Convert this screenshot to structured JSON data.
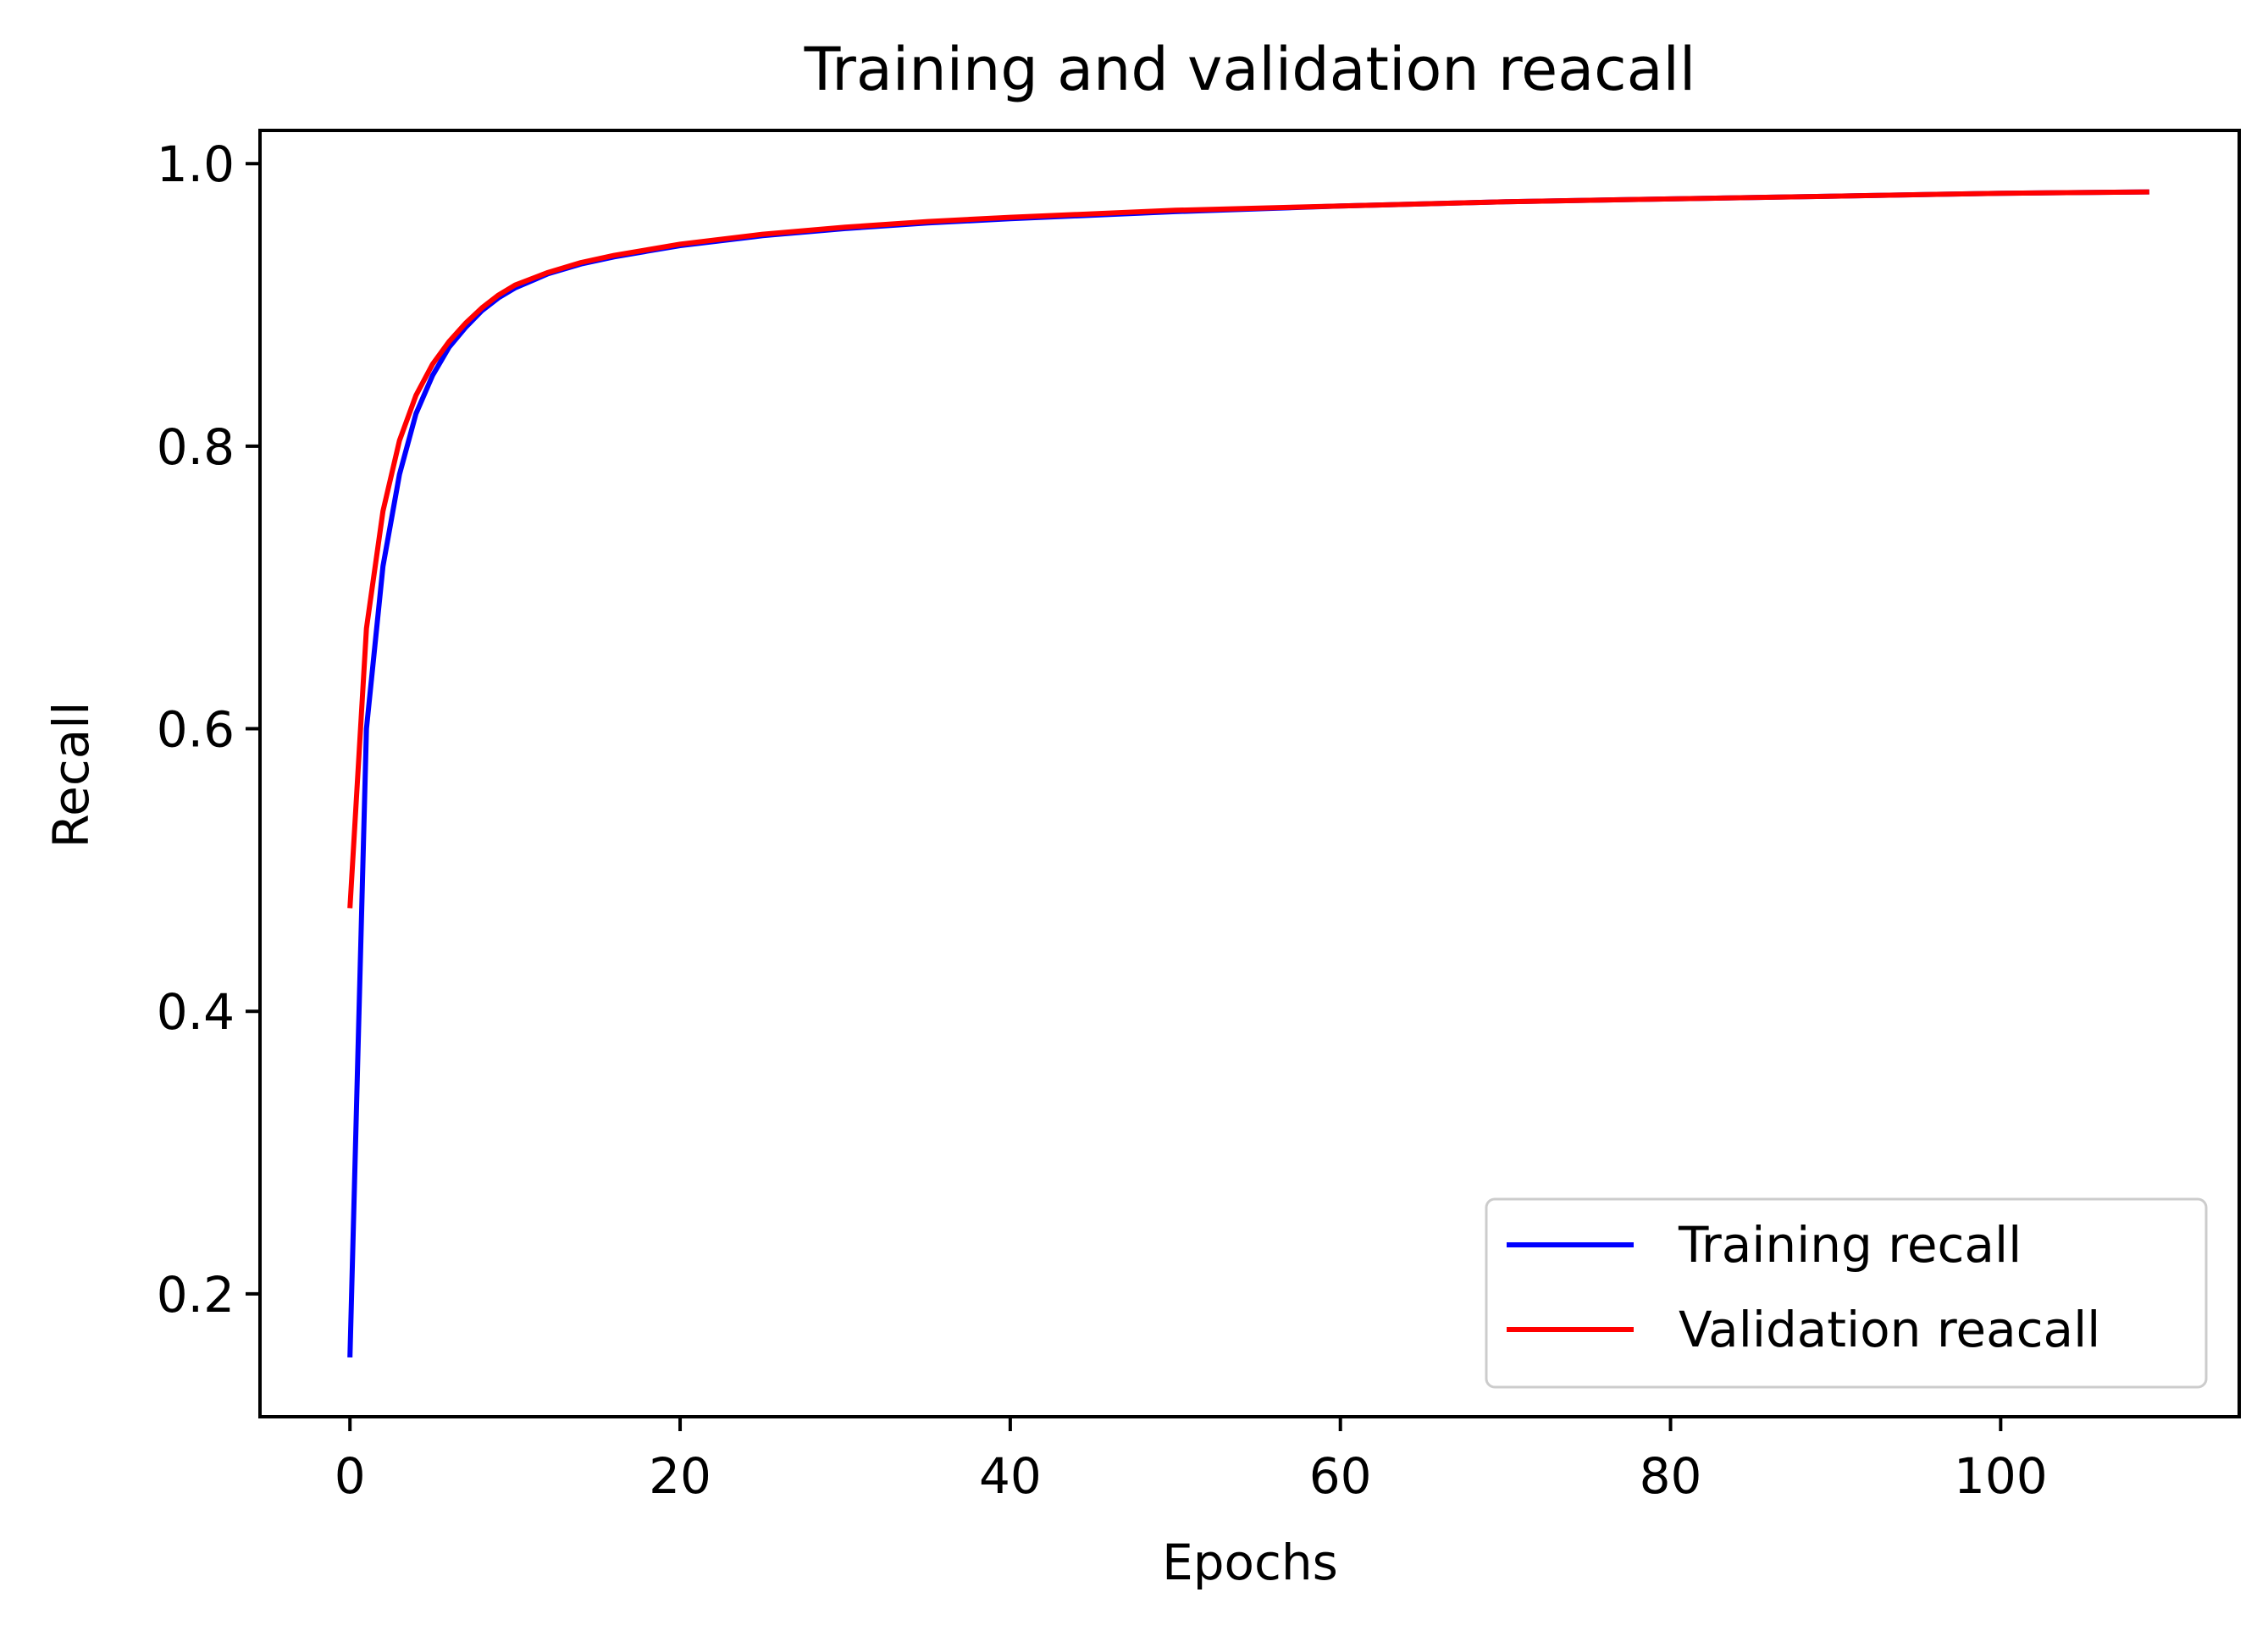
{
  "chart_data": {
    "type": "line",
    "title": "Training and validation reacall",
    "xlabel": "Epochs",
    "ylabel": "Recall",
    "xlim": [
      -5.45,
      114.45
    ],
    "ylim": [
      0.113,
      1.0235
    ],
    "xticks": [
      0,
      20,
      40,
      60,
      80,
      100
    ],
    "yticks": [
      0.2,
      0.4,
      0.6,
      0.8,
      1.0
    ],
    "xtick_labels": [
      "0",
      "20",
      "40",
      "60",
      "80",
      "100"
    ],
    "ytick_labels": [
      "0.2",
      "0.4",
      "0.6",
      "0.8",
      "1.0"
    ],
    "grid": false,
    "legend_position": "lower-right",
    "series": [
      {
        "name": "Training recall",
        "color": "#0000ff",
        "x": [
          0,
          1,
          2,
          3,
          4,
          5,
          6,
          7,
          8,
          9,
          10,
          12,
          14,
          16,
          18,
          20,
          25,
          30,
          35,
          40,
          50,
          60,
          70,
          80,
          90,
          100,
          109
        ],
        "values": [
          0.155,
          0.6,
          0.715,
          0.78,
          0.823,
          0.85,
          0.87,
          0.884,
          0.896,
          0.905,
          0.912,
          0.922,
          0.929,
          0.934,
          0.938,
          0.942,
          0.949,
          0.954,
          0.958,
          0.961,
          0.966,
          0.97,
          0.973,
          0.975,
          0.977,
          0.979,
          0.98
        ]
      },
      {
        "name": "Validation reacall",
        "color": "#ff0000",
        "x": [
          0,
          1,
          2,
          3,
          4,
          5,
          6,
          7,
          8,
          9,
          10,
          12,
          14,
          16,
          18,
          20,
          25,
          30,
          35,
          40,
          50,
          60,
          70,
          80,
          90,
          100,
          109
        ],
        "values": [
          0.473,
          0.671,
          0.754,
          0.804,
          0.836,
          0.858,
          0.874,
          0.887,
          0.898,
          0.907,
          0.914,
          0.923,
          0.93,
          0.935,
          0.939,
          0.943,
          0.95,
          0.955,
          0.959,
          0.962,
          0.967,
          0.97,
          0.973,
          0.975,
          0.977,
          0.979,
          0.98
        ]
      }
    ]
  }
}
